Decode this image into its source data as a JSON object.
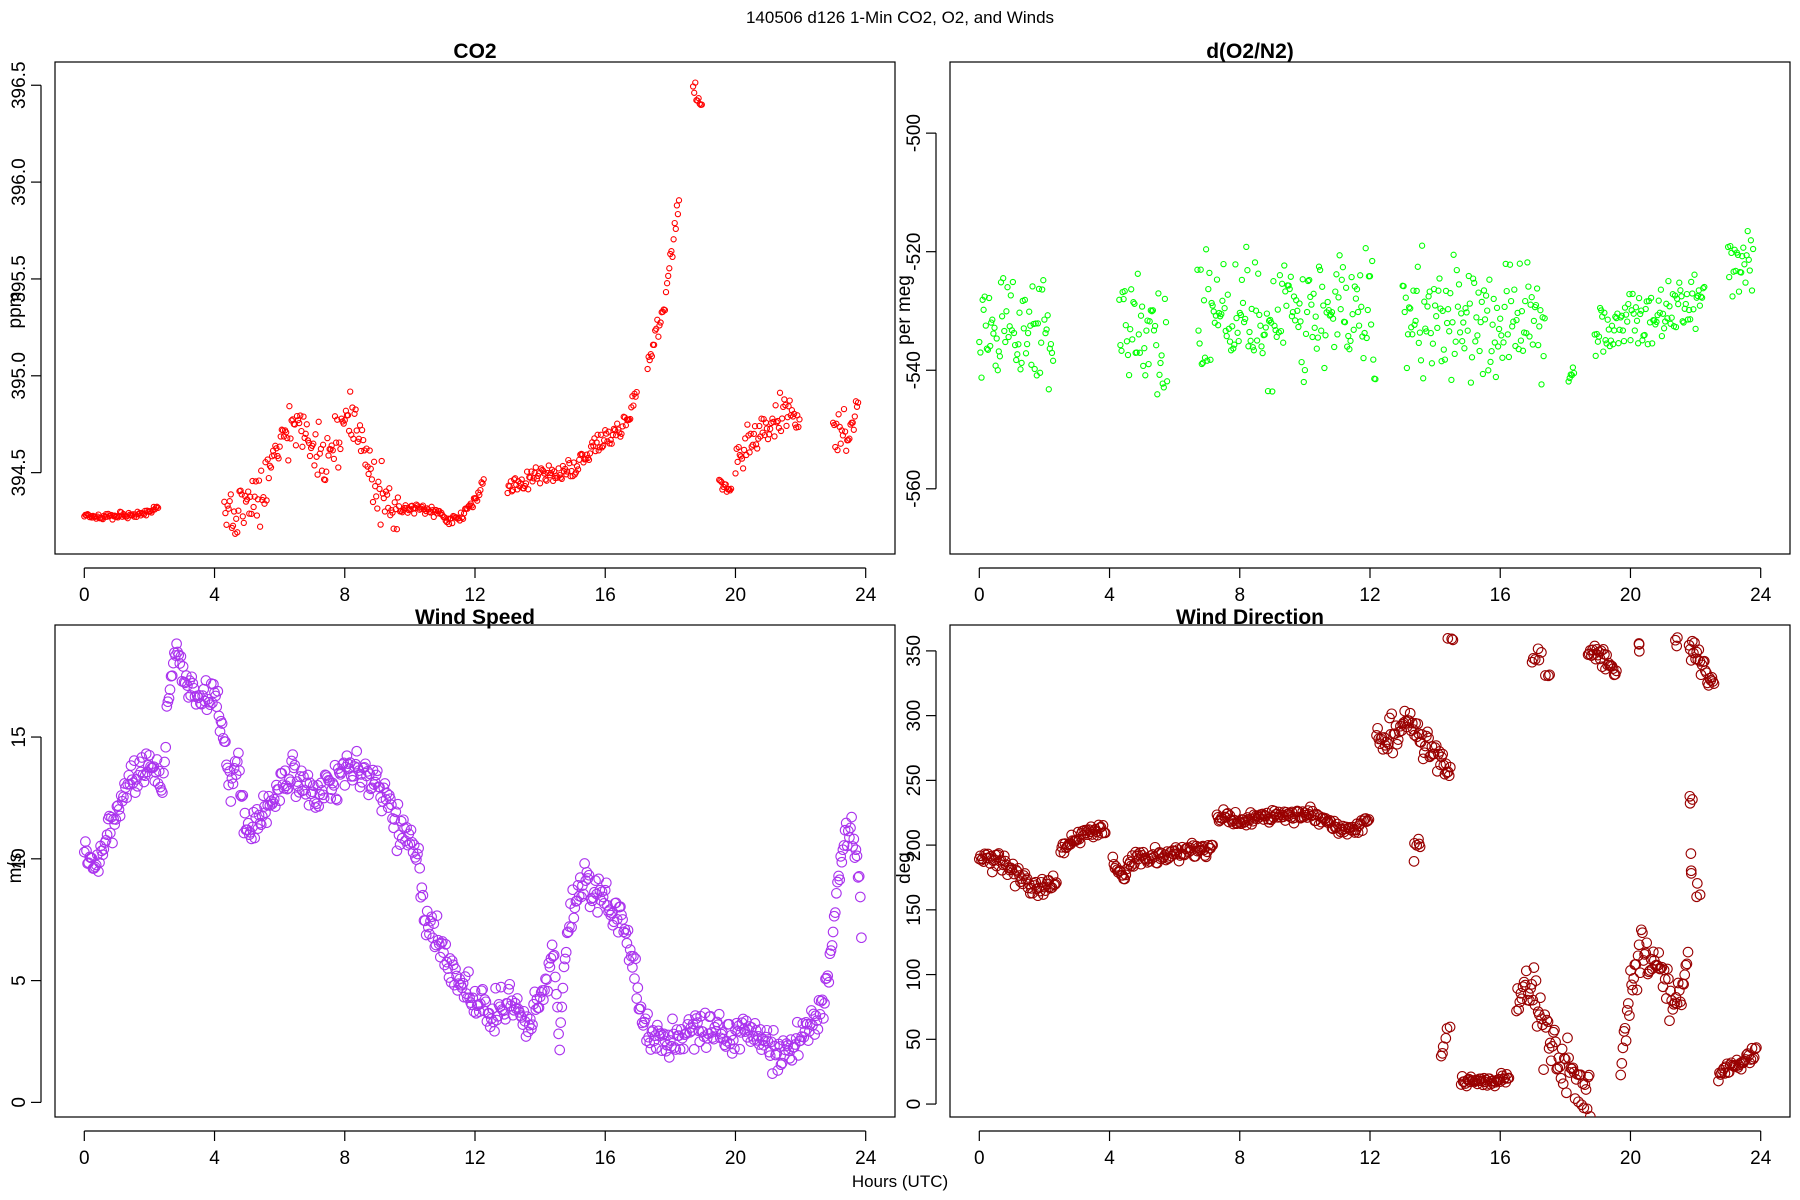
{
  "figure": {
    "title": "140506   d126   1-Min CO2, O2, and Winds",
    "xlabel": "Hours (UTC)"
  },
  "chart_data": [
    {
      "type": "scatter",
      "title": "CO2",
      "ylabel": "ppm",
      "xlim": [
        -0.9,
        24.9
      ],
      "ylim": [
        394.08,
        396.62
      ],
      "xticks": [
        0,
        4,
        8,
        12,
        16,
        20,
        24
      ],
      "yticks": [
        394.5,
        395.0,
        395.5,
        396.0,
        396.5
      ],
      "yticklabels": [
        "394.5",
        "395.0",
        "395.5",
        "396.0",
        "396.5"
      ],
      "color": "#ff0000",
      "marker_size": "small",
      "segments": [
        {
          "x": [
            0.0,
            0.5,
            1.0,
            1.5,
            2.0,
            2.3
          ],
          "y": [
            394.28,
            394.27,
            394.28,
            394.28,
            394.3,
            394.32
          ],
          "spread": 0.015
        },
        {
          "x": [
            4.3,
            4.6,
            5.0,
            5.4,
            5.8,
            6.2,
            6.6,
            7.0,
            7.4,
            7.8,
            8.2,
            8.6,
            9.0,
            9.4,
            9.8
          ],
          "y": [
            394.3,
            394.3,
            394.37,
            394.36,
            394.55,
            394.7,
            394.78,
            394.65,
            394.55,
            394.7,
            394.82,
            394.6,
            394.4,
            394.35,
            394.32
          ],
          "spread": 0.12
        },
        {
          "x": [
            9.8,
            10.3,
            10.8,
            11.2,
            11.6,
            12.0,
            12.3
          ],
          "y": [
            394.32,
            394.32,
            394.3,
            394.25,
            394.27,
            394.35,
            394.48
          ],
          "spread": 0.02
        },
        {
          "x": [
            13.0,
            13.5,
            14.0,
            14.5,
            15.0,
            15.5,
            16.0,
            16.5,
            17.0
          ],
          "y": [
            394.42,
            394.45,
            394.5,
            394.48,
            394.52,
            394.6,
            394.68,
            394.72,
            394.9
          ],
          "spread": 0.05
        },
        {
          "x": [
            17.3,
            17.8,
            18.3
          ],
          "y": [
            395.05,
            395.35,
            395.95
          ],
          "spread": 0.06
        },
        {
          "x": [
            18.7,
            18.8,
            18.9,
            19.0
          ],
          "y": [
            396.5,
            396.45,
            396.4,
            396.35
          ],
          "spread": 0.04
        },
        {
          "x": [
            19.5,
            19.7,
            19.9
          ],
          "y": [
            394.45,
            394.42,
            394.4
          ],
          "spread": 0.03
        },
        {
          "x": [
            20.0,
            20.5,
            21.0,
            21.5,
            22.0
          ],
          "y": [
            394.55,
            394.65,
            394.75,
            394.82,
            394.75
          ],
          "spread": 0.1
        },
        {
          "x": [
            23.0,
            23.4,
            23.8
          ],
          "y": [
            394.75,
            394.7,
            394.85
          ],
          "spread": 0.1
        }
      ]
    },
    {
      "type": "scatter",
      "title": "d(O2/N2)",
      "ylabel": "per meg",
      "xlim": [
        -0.9,
        24.9
      ],
      "ylim": [
        -571,
        -488
      ],
      "xticks": [
        0,
        4,
        8,
        12,
        16,
        20,
        24
      ],
      "yticks": [
        -560,
        -540,
        -520,
        -500
      ],
      "yticklabels": [
        "-560",
        "-540",
        "-520",
        "-500"
      ],
      "color": "#00ff00",
      "marker_size": "small",
      "segments": [
        {
          "x": [
            0.0,
            0.5,
            1.0,
            1.5,
            2.0,
            2.3
          ],
          "y": [
            -535,
            -533,
            -532,
            -533,
            -532,
            -536
          ],
          "spread": 8
        },
        {
          "x": [
            4.3,
            4.8,
            5.3,
            5.8
          ],
          "y": [
            -533,
            -534,
            -535,
            -537
          ],
          "spread": 8
        },
        {
          "x": [
            6.7,
            7.2,
            7.7,
            8.2,
            8.7,
            9.2,
            9.7,
            10.2,
            10.7,
            11.2,
            11.7,
            12.2
          ],
          "y": [
            -530,
            -531,
            -531,
            -530,
            -532,
            -531,
            -530,
            -529,
            -529,
            -530,
            -531,
            -532
          ],
          "spread": 10
        },
        {
          "x": [
            13.0,
            13.5,
            14.0,
            14.5,
            15.0,
            15.5,
            16.0,
            16.5,
            17.0,
            17.4
          ],
          "y": [
            -531,
            -532,
            -531,
            -532,
            -532,
            -533,
            -533,
            -532,
            -532,
            -533
          ],
          "spread": 8
        },
        {
          "x": [
            18.1,
            18.3
          ],
          "y": [
            -541,
            -540
          ],
          "spread": 2
        },
        {
          "x": [
            18.9,
            19.4,
            19.9,
            20.4,
            20.9,
            21.4,
            21.9,
            22.3
          ],
          "y": [
            -534,
            -533,
            -532,
            -531,
            -530,
            -529,
            -528,
            -527
          ],
          "spread": 4
        },
        {
          "x": [
            23.0,
            23.4,
            23.8
          ],
          "y": [
            -523,
            -522,
            -522
          ],
          "spread": 4
        }
      ]
    },
    {
      "type": "scatter",
      "title": "Wind Speed",
      "ylabel": "m/s",
      "xlim": [
        -0.9,
        24.9
      ],
      "ylim": [
        -0.6,
        19.6
      ],
      "xticks": [
        0,
        4,
        8,
        12,
        16,
        20,
        24
      ],
      "yticks": [
        0,
        5,
        10,
        15
      ],
      "yticklabels": [
        "0",
        "5",
        "10",
        "15"
      ],
      "color": "#aa33ee",
      "marker_size": "large",
      "segments": [
        {
          "x": [
            0.0,
            0.3,
            0.6,
            0.9,
            1.2,
            1.5,
            1.8,
            2.1,
            2.4,
            2.6,
            2.8,
            3.0,
            3.3,
            3.6,
            3.9,
            4.1,
            4.3,
            4.5,
            4.7,
            4.9,
            5.1,
            5.3,
            5.6,
            6.0,
            6.4,
            6.8,
            7.2,
            7.6,
            8.0,
            8.4,
            8.8,
            9.2,
            9.6,
            10.0,
            10.2,
            10.4,
            10.7,
            11.0,
            11.4,
            11.8,
            12.2,
            12.6,
            13.0,
            13.3,
            13.6,
            13.9,
            14.2,
            14.4,
            14.6,
            14.8,
            15.0,
            15.3,
            15.6,
            15.9,
            16.2,
            16.5,
            16.8,
            17.1,
            17.5,
            17.9,
            18.3,
            18.7,
            19.1,
            19.5,
            19.9,
            20.3,
            20.7,
            21.1,
            21.5,
            21.9,
            22.3,
            22.7,
            23.0,
            23.2,
            23.4,
            23.6,
            23.8,
            23.9
          ],
          "y": [
            10.0,
            9.6,
            10.4,
            11.5,
            12.8,
            13.4,
            13.8,
            14.0,
            13.2,
            17.0,
            18.5,
            18.0,
            17.0,
            16.5,
            16.8,
            16.0,
            15.0,
            13.0,
            14.0,
            12.0,
            11.0,
            11.5,
            12.0,
            13.0,
            13.5,
            13.0,
            12.8,
            13.2,
            13.5,
            13.6,
            13.2,
            12.6,
            11.5,
            11.0,
            10.4,
            8.0,
            7.0,
            6.2,
            5.0,
            4.5,
            4.0,
            3.7,
            4.0,
            3.8,
            3.3,
            4.0,
            5.0,
            6.5,
            2.0,
            6.8,
            8.2,
            9.0,
            8.8,
            8.5,
            8.0,
            7.5,
            6.5,
            3.5,
            2.8,
            2.5,
            2.5,
            3.0,
            2.8,
            3.2,
            2.6,
            3.0,
            2.6,
            2.2,
            2.0,
            2.5,
            3.2,
            4.0,
            7.0,
            9.5,
            11.0,
            11.2,
            9.0,
            6.5
          ],
          "spread": 0.7
        }
      ]
    },
    {
      "type": "scatter",
      "title": "Wind Direction",
      "ylabel": "deg",
      "xlim": [
        -0.9,
        24.9
      ],
      "ylim": [
        -10,
        370
      ],
      "xticks": [
        0,
        4,
        8,
        12,
        16,
        20,
        24
      ],
      "yticks": [
        0,
        50,
        100,
        150,
        200,
        250,
        300,
        350
      ],
      "yticklabels": [
        "0",
        "50",
        "100",
        "150",
        "200",
        "250",
        "300",
        "350"
      ],
      "color": "#990000",
      "marker_size": "large",
      "segments": [
        {
          "x": [
            0.0,
            0.5,
            1.0,
            1.5,
            2.0,
            2.4
          ],
          "y": [
            190,
            188,
            180,
            170,
            168,
            172
          ],
          "spread": 7
        },
        {
          "x": [
            2.5,
            3.0,
            3.5,
            3.9
          ],
          "y": [
            198,
            205,
            210,
            212
          ],
          "spread": 5
        },
        {
          "x": [
            4.1,
            4.4,
            4.7,
            5.0,
            5.5,
            6.0,
            6.5,
            7.0,
            7.2
          ],
          "y": [
            185,
            178,
            188,
            192,
            192,
            193,
            195,
            196,
            198
          ],
          "spread": 6
        },
        {
          "x": [
            7.3,
            8.0,
            9.0,
            10.0,
            10.5,
            11.0,
            11.5,
            12.0
          ],
          "y": [
            222,
            220,
            222,
            224,
            222,
            213,
            212,
            220
          ],
          "spread": 5
        },
        {
          "x": [
            12.2,
            12.7,
            13.2,
            13.6,
            14.0,
            14.3,
            14.5
          ],
          "y": [
            280,
            285,
            298,
            285,
            270,
            262,
            250
          ],
          "spread": 12
        },
        {
          "x": [
            14.8,
            15.3,
            15.8,
            16.3
          ],
          "y": [
            18,
            17,
            18,
            20
          ],
          "spread": 4
        },
        {
          "x": [
            16.5,
            16.8,
            17.1,
            17.4,
            17.8,
            18.2,
            18.5,
            18.8
          ],
          "y": [
            70,
            100,
            80,
            50,
            40,
            25,
            15,
            10
          ],
          "spread": 20
        },
        {
          "x": [
            18.7,
            19.0,
            19.3,
            19.6
          ],
          "y": [
            352,
            350,
            340,
            330
          ],
          "spread": 7
        },
        {
          "x": [
            19.7,
            20.0,
            20.3,
            20.6,
            20.9,
            21.2,
            21.5,
            21.8
          ],
          "y": [
            40,
            80,
            120,
            110,
            100,
            90,
            80,
            110
          ],
          "spread": 20
        },
        {
          "x": [
            21.8,
            22.0,
            22.3,
            22.6
          ],
          "y": [
            350,
            350,
            335,
            320
          ],
          "spread": 10
        },
        {
          "x": [
            22.7,
            23.0,
            23.3,
            23.6,
            23.9
          ],
          "y": [
            22,
            28,
            32,
            35,
            42
          ],
          "spread": 5
        }
      ],
      "outliers": {
        "x": [
          14.2,
          14.4,
          14.5,
          13.4,
          13.5,
          17.0,
          17.2,
          17.5,
          20.3,
          21.9,
          21.4,
          21.9,
          22.1
        ],
        "y": [
          40,
          58,
          355,
          195,
          200,
          340,
          350,
          330,
          355,
          235,
          355,
          185,
          170
        ]
      }
    }
  ]
}
